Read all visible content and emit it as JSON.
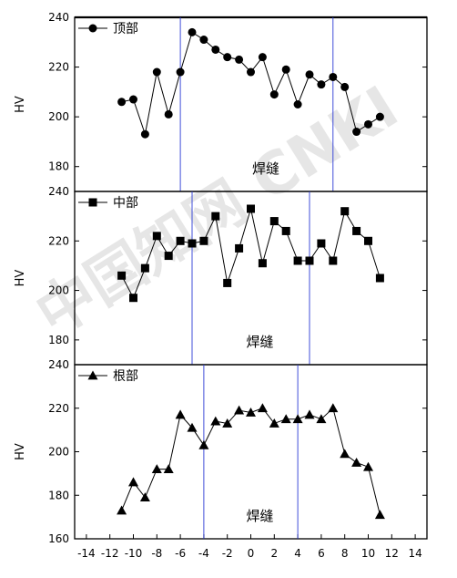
{
  "chart_data": [
    {
      "type": "line",
      "panel": "top",
      "ylabel": "HV",
      "ylim": [
        170,
        240
      ],
      "yticks": [
        180,
        200,
        220,
        240
      ],
      "xlim": [
        -15,
        15
      ],
      "marker": "circle",
      "legend": {
        "label": "顶部",
        "placement": "top-left"
      },
      "annotation": "焊缝",
      "vlines": [
        -6,
        7
      ],
      "series": [
        {
          "name": "顶部",
          "x": [
            -11,
            -10,
            -9,
            -8,
            -7,
            -6,
            -5,
            -4,
            -3,
            -2,
            -1,
            0,
            1,
            2,
            3,
            4,
            5,
            6,
            7,
            8,
            9,
            10,
            11
          ],
          "y": [
            206,
            207,
            193,
            218,
            201,
            218,
            234,
            231,
            227,
            224,
            223,
            218,
            224,
            209,
            219,
            205,
            217,
            213,
            216,
            212,
            194,
            197,
            200
          ]
        }
      ]
    },
    {
      "type": "line",
      "panel": "middle",
      "ylabel": "HV",
      "ylim": [
        170,
        240
      ],
      "yticks": [
        180,
        200,
        220,
        240
      ],
      "xlim": [
        -15,
        15
      ],
      "marker": "square",
      "legend": {
        "label": "中部",
        "placement": "top-left"
      },
      "annotation": "焊缝",
      "vlines": [
        -5,
        5
      ],
      "series": [
        {
          "name": "中部",
          "x": [
            -11,
            -10,
            -9,
            -8,
            -7,
            -6,
            -5,
            -4,
            -3,
            -2,
            -1,
            0,
            1,
            2,
            3,
            4,
            5,
            6,
            7,
            8,
            9,
            10,
            11
          ],
          "y": [
            206,
            197,
            209,
            222,
            214,
            220,
            219,
            220,
            230,
            203,
            217,
            233,
            211,
            228,
            224,
            212,
            212,
            219,
            212,
            232,
            224,
            220,
            205
          ]
        }
      ]
    },
    {
      "type": "line",
      "panel": "bottom",
      "ylabel": "HV",
      "ylim": [
        160,
        240
      ],
      "yticks": [
        160,
        180,
        200,
        220,
        240
      ],
      "xlim": [
        -15,
        15
      ],
      "xticks": [
        -14,
        -12,
        -10,
        -8,
        -6,
        -4,
        -2,
        0,
        2,
        4,
        6,
        8,
        10,
        12,
        14
      ],
      "marker": "triangle",
      "legend": {
        "label": "根部",
        "placement": "top-left"
      },
      "annotation": "焊缝",
      "vlines": [
        -4,
        4
      ],
      "series": [
        {
          "name": "根部",
          "x": [
            -11,
            -10,
            -9,
            -8,
            -7,
            -6,
            -5,
            -4,
            -3,
            -2,
            -1,
            0,
            1,
            2,
            3,
            4,
            5,
            6,
            7,
            8,
            9,
            10,
            11
          ],
          "y": [
            173,
            186,
            179,
            192,
            192,
            217,
            211,
            203,
            214,
            213,
            219,
            218,
            220,
            213,
            215,
            215,
            217,
            215,
            220,
            199,
            195,
            193,
            171
          ]
        }
      ]
    }
  ],
  "watermark": "中国知网 CNKI",
  "colors": {
    "line": "#000000",
    "guide": "#2b3bd6",
    "axis": "#000000",
    "watermark": "#e6e6e6"
  }
}
